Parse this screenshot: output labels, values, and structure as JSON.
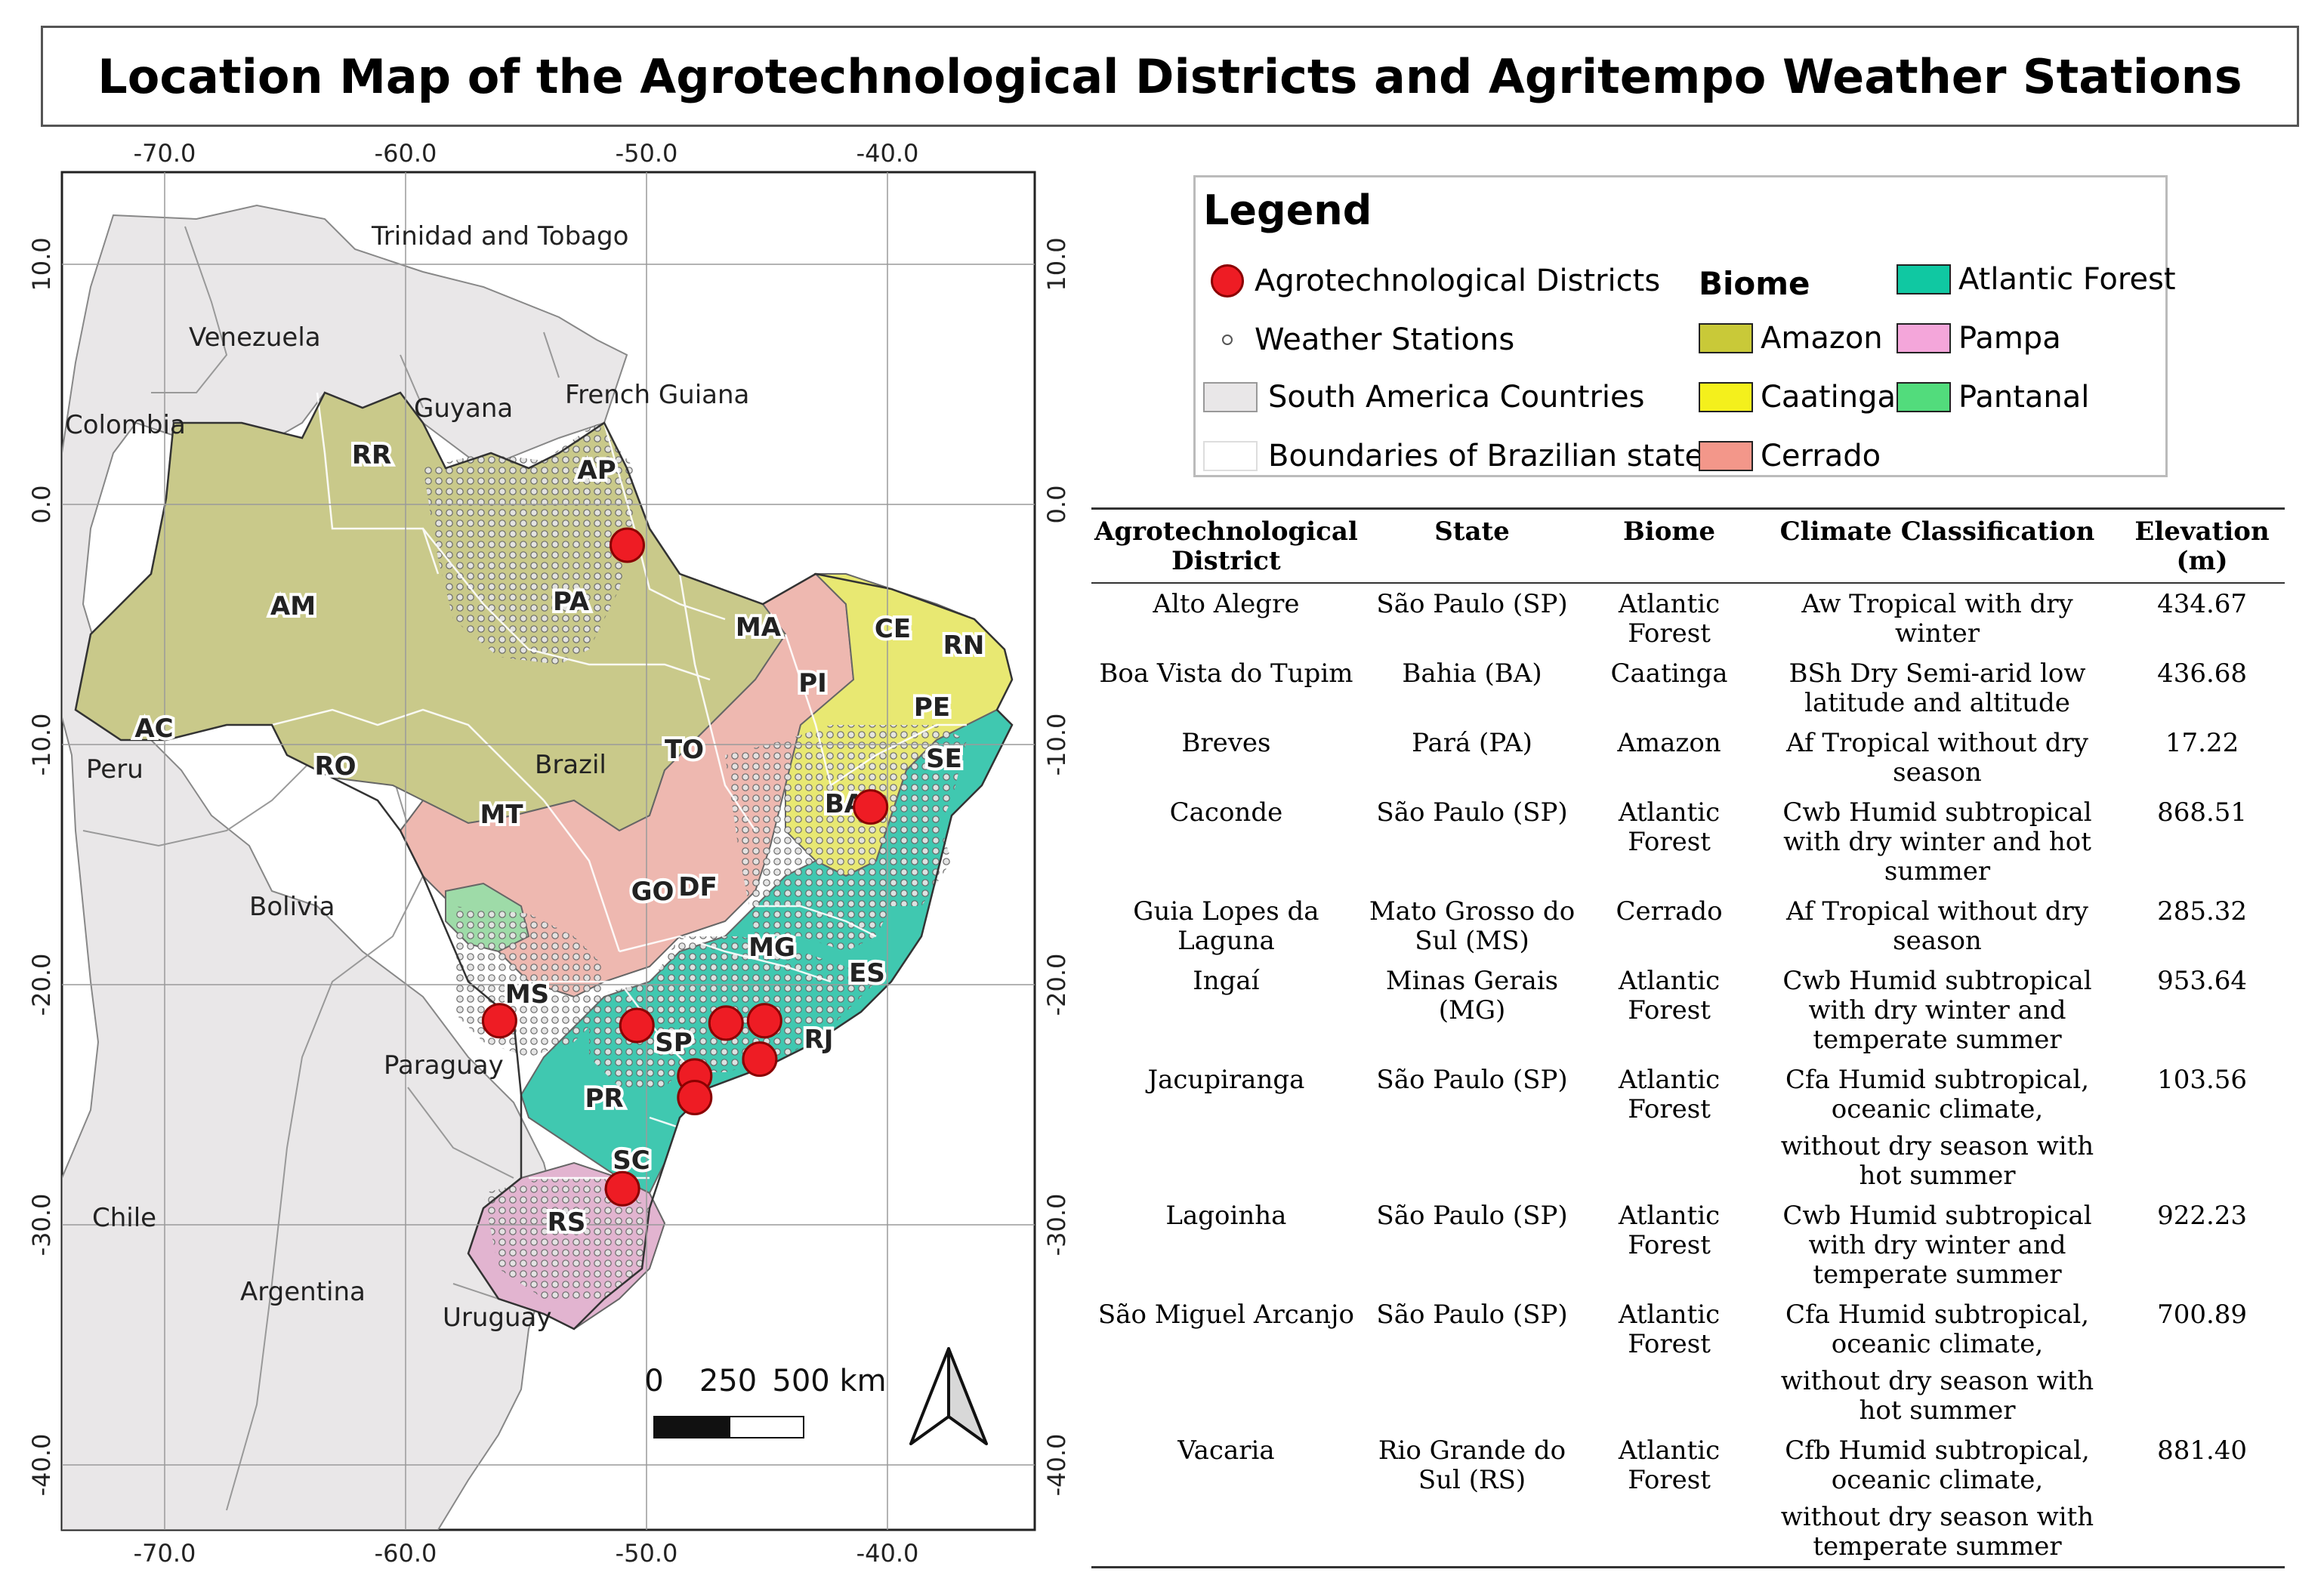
{
  "title": "Location Map of the Agrotechnological Districts and Agritempo Weather Stations",
  "map": {
    "lon_ticks_top": [
      "-70.0",
      "-60.0",
      "-50.0",
      "-40.0"
    ],
    "lon_ticks_bottom": [
      "-70.0",
      "-60.0",
      "-50.0",
      "-40.0"
    ],
    "lat_ticks_left": [
      "10.0",
      "0.0",
      "-10.0",
      "-20.0",
      "-30.0",
      "-40.0"
    ],
    "lat_ticks_right": [
      "10.0",
      "0.0",
      "-10.0",
      "-20.0",
      "-30.0",
      "-40.0"
    ],
    "country_labels": [
      "Trinidad and Tobago",
      "Venezuela",
      "Guyana",
      "French Guiana",
      "Colombia",
      "Peru",
      "Brazil",
      "Bolivia",
      "Paraguay",
      "Chile",
      "Argentina",
      "Uruguay"
    ],
    "state_labels": [
      "RR",
      "AP",
      "AM",
      "PA",
      "MA",
      "CE",
      "RN",
      "PI",
      "PE",
      "AC",
      "RO",
      "TO",
      "SE",
      "MT",
      "BA",
      "GO",
      "DF",
      "MG",
      "MS",
      "ES",
      "SP",
      "RJ",
      "PR",
      "SC",
      "RS"
    ],
    "districts": [
      {
        "lon": -50.8,
        "lat": -1.7
      },
      {
        "lon": -40.7,
        "lat": -12.6
      },
      {
        "lon": -56.1,
        "lat": -21.5
      },
      {
        "lon": -50.4,
        "lat": -21.7
      },
      {
        "lon": -46.7,
        "lat": -21.6
      },
      {
        "lon": -45.1,
        "lat": -21.5
      },
      {
        "lon": -45.3,
        "lat": -23.1
      },
      {
        "lon": -48.0,
        "lat": -23.8
      },
      {
        "lon": -48.0,
        "lat": -24.7
      },
      {
        "lon": -51.0,
        "lat": -28.5
      }
    ],
    "scale_bar": {
      "labels": [
        "0",
        "250",
        "500 km"
      ]
    },
    "north_arrow": "north-arrow-icon"
  },
  "legend": {
    "title": "Legend",
    "items": [
      {
        "label": "Agrotechnological Districts",
        "symbol": "district-marker"
      },
      {
        "label": "Weather Stations",
        "symbol": "station-marker"
      },
      {
        "label": "South America Countries",
        "color": "#e9e7e8"
      },
      {
        "label": "Boundaries of Brazilian states",
        "color": "#ffffff"
      }
    ],
    "biome_title": "Biome",
    "biomes": [
      {
        "label": "Amazon",
        "color": "#c9c938"
      },
      {
        "label": "Caatinga",
        "color": "#f4f01c"
      },
      {
        "label": "Cerrado",
        "color": "#f3978a"
      },
      {
        "label": "Atlantic Forest",
        "color": "#10c8a2"
      },
      {
        "label": "Pampa",
        "color": "#f4a6da"
      },
      {
        "label": "Pantanal",
        "color": "#52dc7c"
      }
    ]
  },
  "table": {
    "headers": [
      "Agrotechnological District",
      "State",
      "Biome",
      "Climate Classification",
      "Elevation (m)"
    ],
    "rows": [
      {
        "district": "Alto Alegre",
        "state": "São Paulo (SP)",
        "biome": "Atlantic Forest",
        "climate": [
          "Aw Tropical with dry winter"
        ],
        "elevation": "434.67"
      },
      {
        "district": "Boa Vista do Tupim",
        "state": "Bahia (BA)",
        "biome": "Caatinga",
        "climate": [
          "BSh Dry Semi-arid low latitude and altitude"
        ],
        "elevation": "436.68"
      },
      {
        "district": "Breves",
        "state": "Pará (PA)",
        "biome": "Amazon",
        "climate": [
          "Af Tropical without dry season"
        ],
        "elevation": "17.22"
      },
      {
        "district": "Caconde",
        "state": "São Paulo (SP)",
        "biome": "Atlantic Forest",
        "climate": [
          "Cwb Humid subtropical with dry winter and hot summer"
        ],
        "elevation": "868.51"
      },
      {
        "district": "Guia Lopes da Laguna",
        "state": "Mato Grosso do Sul (MS)",
        "biome": "Cerrado",
        "climate": [
          "Af Tropical without dry season"
        ],
        "elevation": "285.32"
      },
      {
        "district": "Ingaí",
        "state": "Minas Gerais (MG)",
        "biome": "Atlantic Forest",
        "climate": [
          "Cwb Humid subtropical with dry winter and temperate summer"
        ],
        "elevation": "953.64"
      },
      {
        "district": "Jacupiranga",
        "state": "São Paulo (SP)",
        "biome": "Atlantic Forest",
        "climate": [
          "Cfa Humid subtropical, oceanic climate,",
          "without dry season with hot summer"
        ],
        "elevation": "103.56"
      },
      {
        "district": "Lagoinha",
        "state": "São Paulo (SP)",
        "biome": "Atlantic Forest",
        "climate": [
          "Cwb Humid subtropical with dry winter and temperate summer"
        ],
        "elevation": "922.23"
      },
      {
        "district": "São Miguel Arcanjo",
        "state": "São Paulo (SP)",
        "biome": "Atlantic Forest",
        "climate": [
          "Cfa Humid subtropical, oceanic climate,",
          "without dry season with hot summer"
        ],
        "elevation": "700.89"
      },
      {
        "district": "Vacaria",
        "state": "Rio Grande do Sul (RS)",
        "biome": "Atlantic Forest",
        "climate": [
          "Cfb Humid subtropical, oceanic climate,",
          "without dry season with temperate summer"
        ],
        "elevation": "881.40"
      }
    ]
  }
}
